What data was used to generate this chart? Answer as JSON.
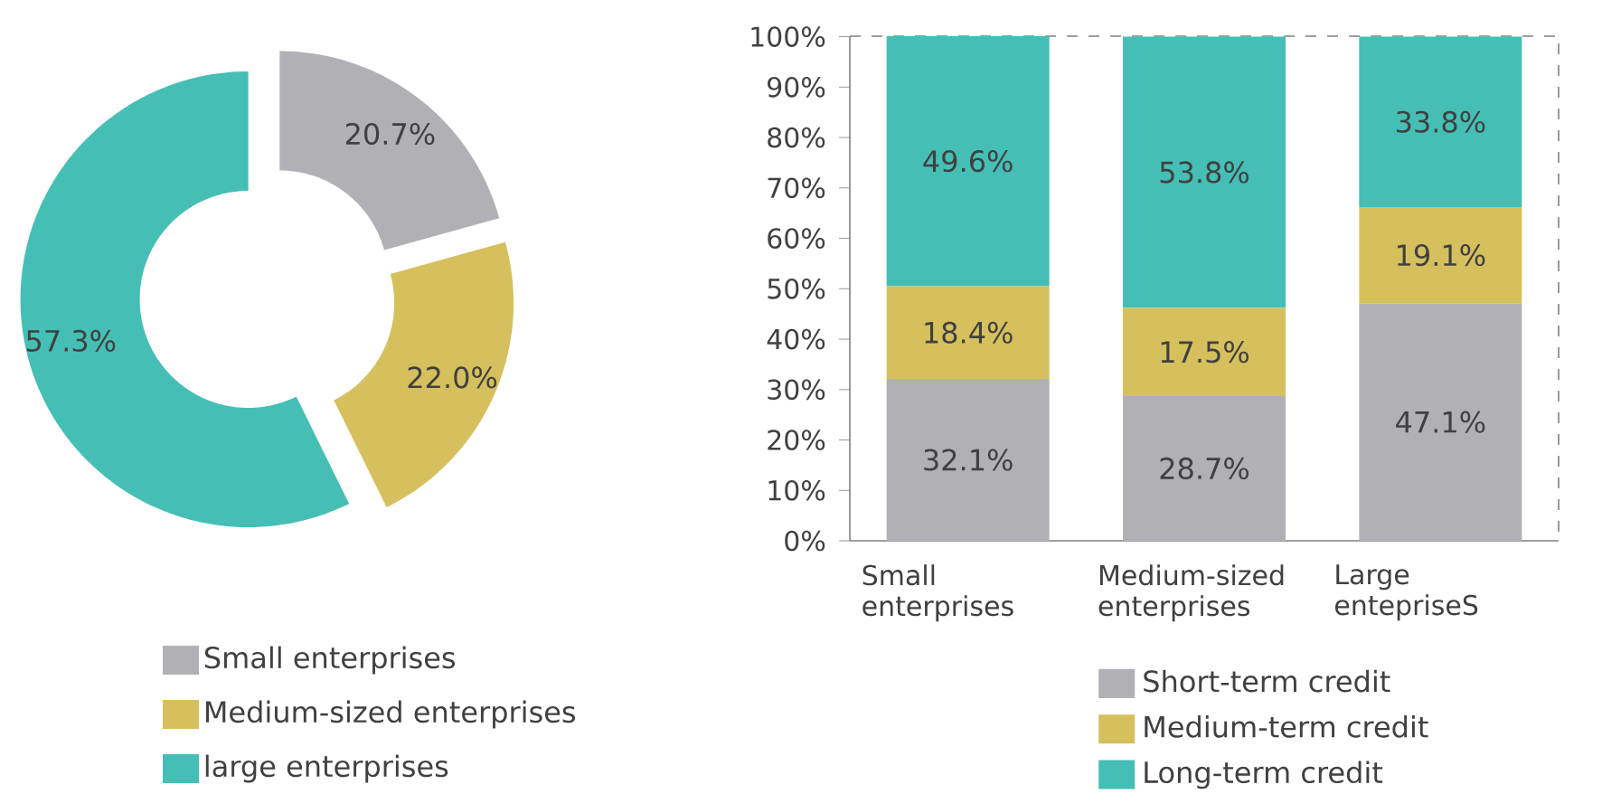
{
  "chart_data": [
    {
      "type": "donut",
      "categories": [
        "Small enterprises",
        "Medium-sized enterprises",
        "large enterprises"
      ],
      "values": [
        20.7,
        22.0,
        57.3
      ],
      "colors": [
        "#b1b1b5",
        "#d6c05d",
        "#45bfb5"
      ],
      "value_labels": [
        "20.7%",
        "22.0%",
        "57.3%"
      ],
      "legend": "bottom"
    },
    {
      "type": "bar",
      "stacked": true,
      "categories": [
        "Small enterprises",
        "Medium-sized enterprises",
        "Large entepriseS"
      ],
      "series": [
        {
          "name": "Short-term credit",
          "color": "#b1b1b5",
          "values": [
            32.1,
            28.7,
            47.1
          ],
          "value_labels": [
            "32.1%",
            "28.7%",
            "47.1%"
          ]
        },
        {
          "name": "Medium-term credit",
          "color": "#d6c05d",
          "values": [
            18.4,
            17.5,
            19.1
          ],
          "value_labels": [
            "18.4%",
            "17.5%",
            "19.1%"
          ]
        },
        {
          "name": "Long-term credit",
          "color": "#45bfb5",
          "values": [
            49.6,
            53.8,
            33.8
          ],
          "value_labels": [
            "49.6%",
            "53.8%",
            "33.8%"
          ]
        }
      ],
      "ylim": [
        0,
        100.1
      ],
      "yticks": [
        {
          "value": 0,
          "label": "0%"
        },
        {
          "value": 10,
          "label": "10%"
        },
        {
          "value": 20,
          "label": "20%"
        },
        {
          "value": 30,
          "label": "30%"
        },
        {
          "value": 40,
          "label": "40%"
        },
        {
          "value": 50,
          "label": "50%"
        },
        {
          "value": 60,
          "label": "60%"
        },
        {
          "value": 70,
          "label": "70%"
        },
        {
          "value": 80,
          "label": "80%"
        },
        {
          "value": 90,
          "label": "90%"
        },
        {
          "value": 100,
          "label": "100%"
        }
      ],
      "legend": "bottom"
    }
  ]
}
